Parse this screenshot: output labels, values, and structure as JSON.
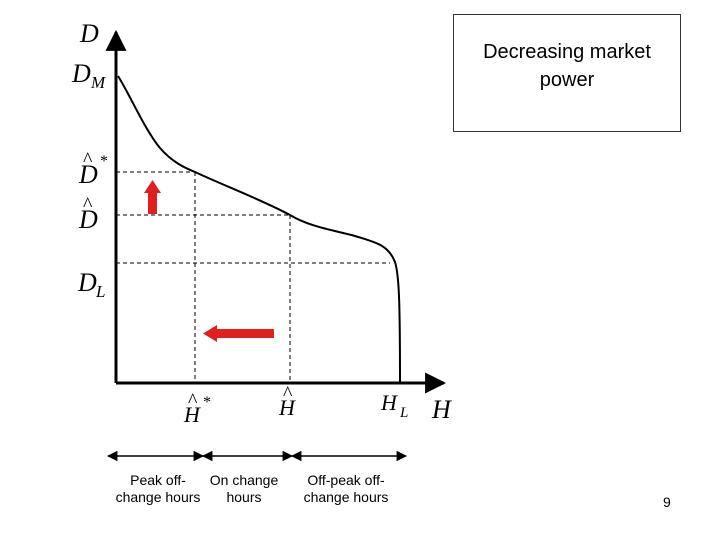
{
  "axis": {
    "y_label": "D",
    "x_label": "H"
  },
  "y_ticks": {
    "d_m": {
      "main": "D",
      "sub": "M"
    },
    "d_star": {
      "main": "D",
      "hat": "^",
      "sup": "*"
    },
    "d_hat": {
      "main": "D",
      "hat": "^"
    },
    "d_l": {
      "main": "D",
      "sub": "L"
    }
  },
  "x_ticks": {
    "h_star": {
      "main": "H",
      "hat": "^",
      "sup": "*"
    },
    "h_hat": {
      "main": "H",
      "hat": "^"
    },
    "h_l": {
      "main": "H",
      "sub": "L"
    }
  },
  "segments": {
    "peak": "Peak off-\nchange hours",
    "on": "On change\nhours",
    "offpeak": "Off-peak off-\nchange hours"
  },
  "note": "Decreasing market\npower",
  "page_number": "9",
  "colors": {
    "arrow": "#e02020",
    "curve": "#000000",
    "axis": "#000000"
  }
}
